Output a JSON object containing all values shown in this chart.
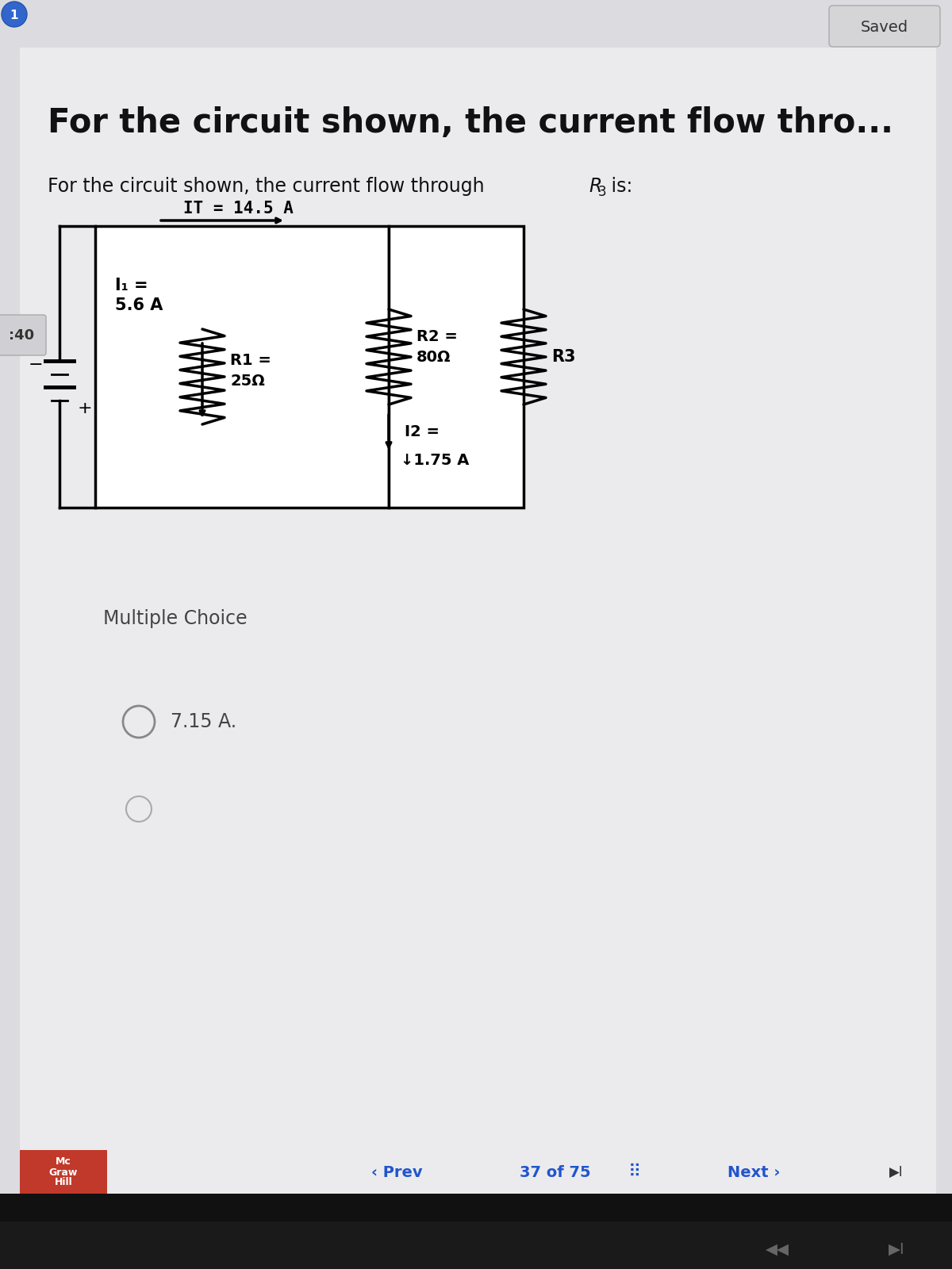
{
  "title_bold": "For the circuit shown, the current flow thro...",
  "subtitle": "For the circuit shown, the current flow through R₃ is:",
  "it_label": "IT = 14.5 A",
  "i1_line1": "I₁ =",
  "i1_line2": "5.6 A",
  "r1_line1": "R1 =",
  "r1_line2": "25Ω",
  "r2_line1": "R2 =",
  "r2_line2": "80Ω",
  "r3_label": "R3",
  "i2_line1": "I2 =",
  "i2_line2": "↓1.75 A",
  "multiple_choice_label": "Multiple Choice",
  "answer_label": "7.15 A.",
  "saved_label": "Saved",
  "timer_label": ":40",
  "mcgraw_line1": "Mc",
  "mcgraw_line2": "Graw",
  "mcgraw_line3": "Hill",
  "prev_label": "‹ Prev",
  "page_label": "37 of 75",
  "next_label": "Next ›",
  "bg_color": "#dcdce0",
  "panel_color": "#ebebee",
  "nav_color": "#2255cc",
  "mcgraw_red": "#c0392b",
  "text_dark": "#111111",
  "text_gray": "#444444"
}
